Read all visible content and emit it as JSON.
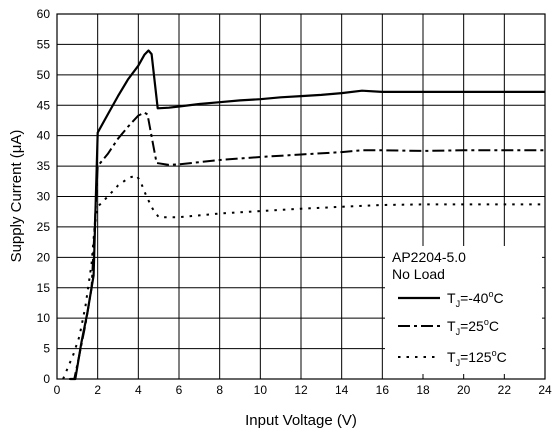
{
  "chart_data": {
    "type": "line",
    "title": "",
    "xlabel": "Input Voltage (V)",
    "ylabel": "Supply Current (μA)",
    "xlim": [
      0,
      24
    ],
    "ylim": [
      0,
      60
    ],
    "x_ticks": [
      0,
      2,
      4,
      6,
      8,
      10,
      12,
      14,
      16,
      18,
      20,
      22,
      24
    ],
    "y_ticks": [
      0,
      5,
      10,
      15,
      20,
      25,
      30,
      35,
      40,
      45,
      50,
      55,
      60
    ],
    "x_tick_labels": [
      "0",
      "2",
      "4",
      "6",
      "8",
      "10",
      "12",
      "14",
      "16",
      "18",
      "20",
      "22",
      "24"
    ],
    "y_tick_labels": [
      "0",
      "5",
      "10",
      "15",
      "20",
      "25",
      "30",
      "35",
      "40",
      "45",
      "50",
      "55",
      "60"
    ],
    "grid": true,
    "legend": {
      "placement": "bottom-right",
      "title_lines": [
        "AP2204-5.0",
        "No Load"
      ]
    },
    "series": [
      {
        "name": "TJ=-40°C",
        "label_parts": {
          "base": "T",
          "sub": "J",
          "val": "=-40",
          "sup": "o",
          "unit": "C"
        },
        "style": "solid",
        "color": "#000000",
        "points": [
          [
            0.65,
            0
          ],
          [
            0.9,
            0
          ],
          [
            1.2,
            6
          ],
          [
            1.5,
            11
          ],
          [
            1.8,
            17
          ],
          [
            2.0,
            40.5
          ],
          [
            2.5,
            43.5
          ],
          [
            3.0,
            46.5
          ],
          [
            3.5,
            49.3
          ],
          [
            4.0,
            51.5
          ],
          [
            4.3,
            53.3
          ],
          [
            4.5,
            54
          ],
          [
            4.65,
            53.4
          ],
          [
            4.8,
            49
          ],
          [
            4.95,
            44.5
          ],
          [
            5.5,
            44.6
          ],
          [
            6,
            44.8
          ],
          [
            7,
            45.2
          ],
          [
            8,
            45.5
          ],
          [
            9,
            45.8
          ],
          [
            10,
            46.0
          ],
          [
            11,
            46.3
          ],
          [
            12,
            46.5
          ],
          [
            13,
            46.7
          ],
          [
            14,
            47.0
          ],
          [
            15,
            47.4
          ],
          [
            16,
            47.2
          ],
          [
            17,
            47.2
          ],
          [
            18,
            47.2
          ],
          [
            20,
            47.2
          ],
          [
            22,
            47.2
          ],
          [
            24,
            47.2
          ]
        ]
      },
      {
        "name": "TJ=25°C",
        "label_parts": {
          "base": "T",
          "sub": "J",
          "val": "=25",
          "sup": "o",
          "unit": "C"
        },
        "style": "dashdot",
        "color": "#000000",
        "points": [
          [
            0.6,
            0
          ],
          [
            0.85,
            0
          ],
          [
            1.1,
            4
          ],
          [
            1.4,
            9
          ],
          [
            1.7,
            15
          ],
          [
            1.9,
            28
          ],
          [
            2.0,
            35
          ],
          [
            2.5,
            37
          ],
          [
            3.0,
            39.5
          ],
          [
            3.5,
            41.5
          ],
          [
            4.0,
            43.3
          ],
          [
            4.3,
            43.8
          ],
          [
            4.45,
            43.5
          ],
          [
            4.7,
            39
          ],
          [
            4.9,
            35.5
          ],
          [
            5.5,
            35.2
          ],
          [
            6,
            35.3
          ],
          [
            8,
            36
          ],
          [
            10,
            36.5
          ],
          [
            12,
            36.9
          ],
          [
            14,
            37.3
          ],
          [
            15,
            37.6
          ],
          [
            16,
            37.6
          ],
          [
            18,
            37.5
          ],
          [
            20,
            37.6
          ],
          [
            22,
            37.6
          ],
          [
            24,
            37.6
          ]
        ]
      },
      {
        "name": "TJ=125°C",
        "label_parts": {
          "base": "T",
          "sub": "J",
          "val": "=125",
          "sup": "o",
          "unit": "C"
        },
        "style": "dotted",
        "color": "#000000",
        "points": [
          [
            0.3,
            0
          ],
          [
            0.55,
            2
          ],
          [
            0.8,
            4
          ],
          [
            1.1,
            7
          ],
          [
            1.4,
            12
          ],
          [
            1.7,
            19
          ],
          [
            1.85,
            25
          ],
          [
            2.0,
            28.3
          ],
          [
            2.5,
            30
          ],
          [
            3.0,
            31.8
          ],
          [
            3.5,
            33
          ],
          [
            3.9,
            33.5
          ],
          [
            4.1,
            32.5
          ],
          [
            4.4,
            30
          ],
          [
            4.7,
            28
          ],
          [
            5.0,
            26.6
          ],
          [
            6,
            26.6
          ],
          [
            8,
            27.2
          ],
          [
            10,
            27.6
          ],
          [
            12,
            28
          ],
          [
            14,
            28.3
          ],
          [
            16,
            28.6
          ],
          [
            18,
            28.7
          ],
          [
            20,
            28.7
          ],
          [
            22,
            28.7
          ],
          [
            24,
            28.7
          ]
        ]
      }
    ]
  }
}
